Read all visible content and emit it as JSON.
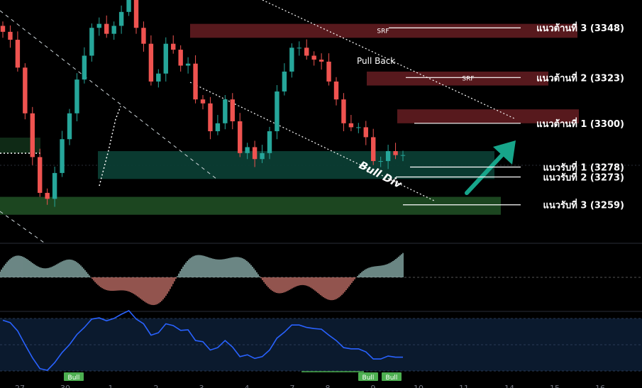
{
  "chart_data": {
    "type": "candlestick",
    "price_range": [
      3240,
      3362
    ],
    "colors": {
      "up": "#26a69a",
      "down": "#ef5350",
      "resistance_zone": "#5c1a1f",
      "support_zone_teal": "#0b3d33",
      "support_zone_green": "#1e4a22",
      "oscillator_line": "#2962ff",
      "arrow": "#17a58a"
    },
    "levels": [
      {
        "label": "แนวต้านที่ 3 (3348)",
        "price": 3348
      },
      {
        "label": "แนวต้านที่ 2 (3323)",
        "price": 3323
      },
      {
        "label": "แนวต้านที่ 1 (3300)",
        "price": 3300
      },
      {
        "label": "แนวรับที่ 1 (3278)",
        "price": 3278
      },
      {
        "label": "แนวรับที่ 2 (3273)",
        "price": 3273
      },
      {
        "label": "แนวรับที่ 3 (3259)",
        "price": 3259
      }
    ],
    "zones": [
      {
        "label": "SRF",
        "kind": "resistance",
        "price_from": 3350,
        "price_to": 3343
      },
      {
        "label": "SRF",
        "kind": "resistance",
        "price_from": 3326,
        "price_to": 3319
      },
      {
        "label": "",
        "kind": "resistance",
        "price_from": 3307,
        "price_to": 3300
      },
      {
        "label": "",
        "kind": "support",
        "price_from": 3286,
        "price_to": 3272
      },
      {
        "label": "",
        "kind": "support",
        "price_from": 3263,
        "price_to": 3254
      }
    ],
    "annotations": [
      "Pull Back",
      "Bull Div"
    ],
    "oscillator_labels": [
      "Bull",
      "Bull",
      "Bull"
    ],
    "x_ticks": [
      "27",
      "30",
      "1",
      "2",
      "3",
      "4",
      "7",
      "8",
      "9",
      "10",
      "11",
      "14",
      "15",
      "16"
    ],
    "series": [
      {
        "name": "",
        "values": [
          3346,
          3342,
          3328,
          3305,
          3283,
          3265,
          3262,
          3275,
          3292,
          3305,
          3322,
          3334,
          3348,
          3350,
          3345,
          3349,
          3356,
          3362,
          3348,
          3340,
          3321,
          3325,
          3340,
          3337,
          3329,
          3330,
          3312,
          3310,
          3296,
          3300,
          3312,
          3301,
          3285,
          3288,
          3282,
          3285,
          3296,
          3316,
          3326,
          3338,
          3338,
          3334,
          3332,
          3331,
          3321,
          3312,
          3300,
          3298,
          3298,
          3293,
          3281,
          3281,
          3286,
          3284,
          3284
        ]
      }
    ]
  }
}
